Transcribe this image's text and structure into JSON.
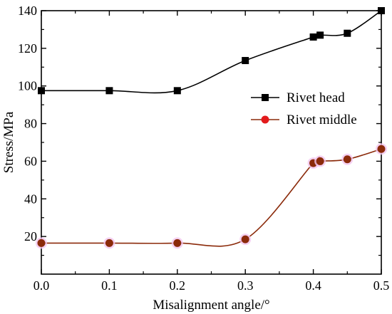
{
  "chart_data": {
    "type": "line",
    "title": "",
    "xlabel": "Misalignment angle/°",
    "ylabel": "Stress/MPa",
    "xlim": [
      0.0,
      0.5
    ],
    "ylim": [
      0,
      140
    ],
    "x_ticks": [
      "0.0",
      "0.1",
      "0.2",
      "0.3",
      "0.4",
      "0.5"
    ],
    "y_ticks": [
      "20",
      "40",
      "60",
      "80",
      "100",
      "120",
      "140"
    ],
    "x_tick_values": [
      0.0,
      0.1,
      0.2,
      0.3,
      0.4,
      0.5
    ],
    "y_tick_values": [
      20,
      40,
      60,
      80,
      100,
      120,
      140
    ],
    "grid": false,
    "legend_position": "right",
    "series": [
      {
        "name": "Rivet head",
        "marker": "square",
        "color": "#000000",
        "marker_color": "#000000",
        "x": [
          0.0,
          0.1,
          0.2,
          0.3,
          0.4,
          0.41,
          0.45,
          0.5
        ],
        "values": [
          97.5,
          97.5,
          97.5,
          113.5,
          126,
          127,
          128,
          140
        ]
      },
      {
        "name": "Rivet middle",
        "marker": "circle",
        "color": "#8b2a0a",
        "marker_color": "#e31a1c",
        "x": [
          0.0,
          0.1,
          0.2,
          0.3,
          0.4,
          0.41,
          0.45,
          0.5
        ],
        "values": [
          16.5,
          16.5,
          16.5,
          18.5,
          59,
          60,
          61,
          66.5
        ]
      }
    ]
  }
}
